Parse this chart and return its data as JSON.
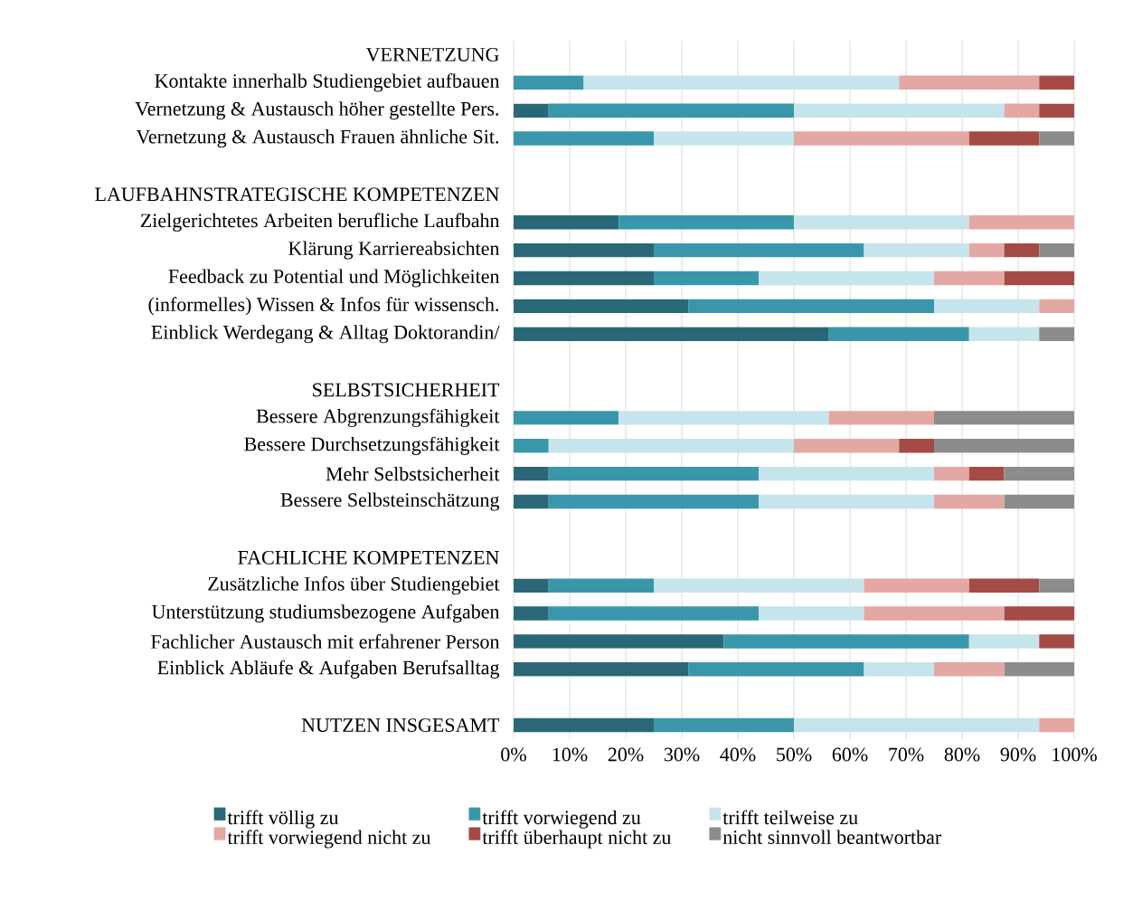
{
  "chart_data": {
    "type": "bar",
    "orientation": "horizontal",
    "stacked": true,
    "categories": [
      "VERNETZUNG",
      "Kontakte innerhalb Studiengebiet aufbauen",
      "Vernetzung & Austausch höher gestellte Pers.",
      "Vernetzung & Austausch Frauen ähnliche Sit.",
      null,
      "LAUFBAHNSTRATEGISCHE KOMPETENZEN",
      "Zielgerichtetes Arbeiten berufliche Laufbahn",
      "Klärung Karriereabsichten",
      "Feedback zu Potential und Möglichkeiten",
      "(informelles) Wissen & Infos für wissensch.",
      "Einblick Werdegang & Alltag Doktorandin/",
      null,
      "SELBSTSICHERHEIT",
      "Bessere Abgrenzungsfähigkeit",
      "Bessere Durchsetzungsfähigkeit",
      "Mehr Selbstsicherheit",
      "Bessere Selbsteinschätzung",
      null,
      "FACHLICHE KOMPETENZEN",
      "Zusätzliche Infos über Studiengebiet",
      "Unterstützung studiumsbezogene Aufgaben",
      "Fachlicher Austausch mit erfahrener Person",
      "Einblick Abläufe & Aufgaben Berufsalltag",
      null,
      "NUTZEN INSGESAMT"
    ],
    "series": [
      {
        "name": "trifft völlig zu",
        "color": "#2a6878",
        "values": [
          null,
          0,
          6.25,
          0,
          null,
          null,
          18.75,
          25,
          25,
          31.25,
          56.25,
          null,
          null,
          0,
          0,
          6.25,
          6.25,
          null,
          null,
          6.25,
          6.25,
          37.5,
          31.25,
          null,
          25
        ]
      },
      {
        "name": "trifft vorwiegend zu",
        "color": "#3a97ab",
        "values": [
          null,
          12.5,
          43.75,
          25,
          null,
          null,
          31.25,
          37.5,
          18.75,
          43.75,
          25,
          null,
          null,
          18.75,
          6.25,
          37.5,
          37.5,
          null,
          null,
          18.75,
          37.5,
          43.75,
          31.25,
          null,
          25
        ]
      },
      {
        "name": "trifft teilweise zu",
        "color": "#c5e4ec",
        "values": [
          null,
          56.25,
          37.5,
          25,
          null,
          null,
          31.25,
          18.75,
          31.25,
          18.75,
          12.5,
          null,
          null,
          37.5,
          43.75,
          31.25,
          31.25,
          null,
          null,
          37.5,
          18.75,
          12.5,
          12.5,
          null,
          43.75
        ]
      },
      {
        "name": "trifft vorwiegend nicht zu",
        "color": "#e3a8a4",
        "values": [
          null,
          25,
          6.25,
          31.25,
          null,
          null,
          18.75,
          6.25,
          12.5,
          6.25,
          0,
          null,
          null,
          18.75,
          18.75,
          6.25,
          12.5,
          null,
          null,
          18.75,
          25,
          0,
          12.5,
          null,
          6.25
        ]
      },
      {
        "name": "trifft überhaupt nicht zu",
        "color": "#a64a46",
        "values": [
          null,
          6.25,
          6.25,
          12.5,
          null,
          null,
          0,
          6.25,
          12.5,
          0,
          0,
          null,
          null,
          0,
          6.25,
          6.25,
          0,
          null,
          null,
          12.5,
          12.5,
          6.25,
          0,
          null,
          0
        ]
      },
      {
        "name": "nicht sinnvoll beantwortbar",
        "color": "#8c8c8c",
        "values": [
          null,
          0,
          0,
          6.25,
          null,
          null,
          0,
          6.25,
          0,
          0,
          6.25,
          null,
          null,
          25,
          25,
          12.5,
          12.5,
          null,
          null,
          6.25,
          0,
          0,
          12.5,
          null,
          0
        ]
      }
    ],
    "xlim": [
      0,
      100
    ],
    "xticks": [
      {
        "value": 0,
        "label": "0%"
      },
      {
        "value": 10,
        "label": "10%"
      },
      {
        "value": 20,
        "label": "20%"
      },
      {
        "value": 30,
        "label": "30%"
      },
      {
        "value": 40,
        "label": "40%"
      },
      {
        "value": 50,
        "label": "50%"
      },
      {
        "value": 60,
        "label": "60%"
      },
      {
        "value": 70,
        "label": "70%"
      },
      {
        "value": 80,
        "label": "80%"
      },
      {
        "value": 90,
        "label": "90%"
      },
      {
        "value": 100,
        "label": "100%"
      }
    ],
    "grid": "x",
    "legend": "bottom"
  }
}
